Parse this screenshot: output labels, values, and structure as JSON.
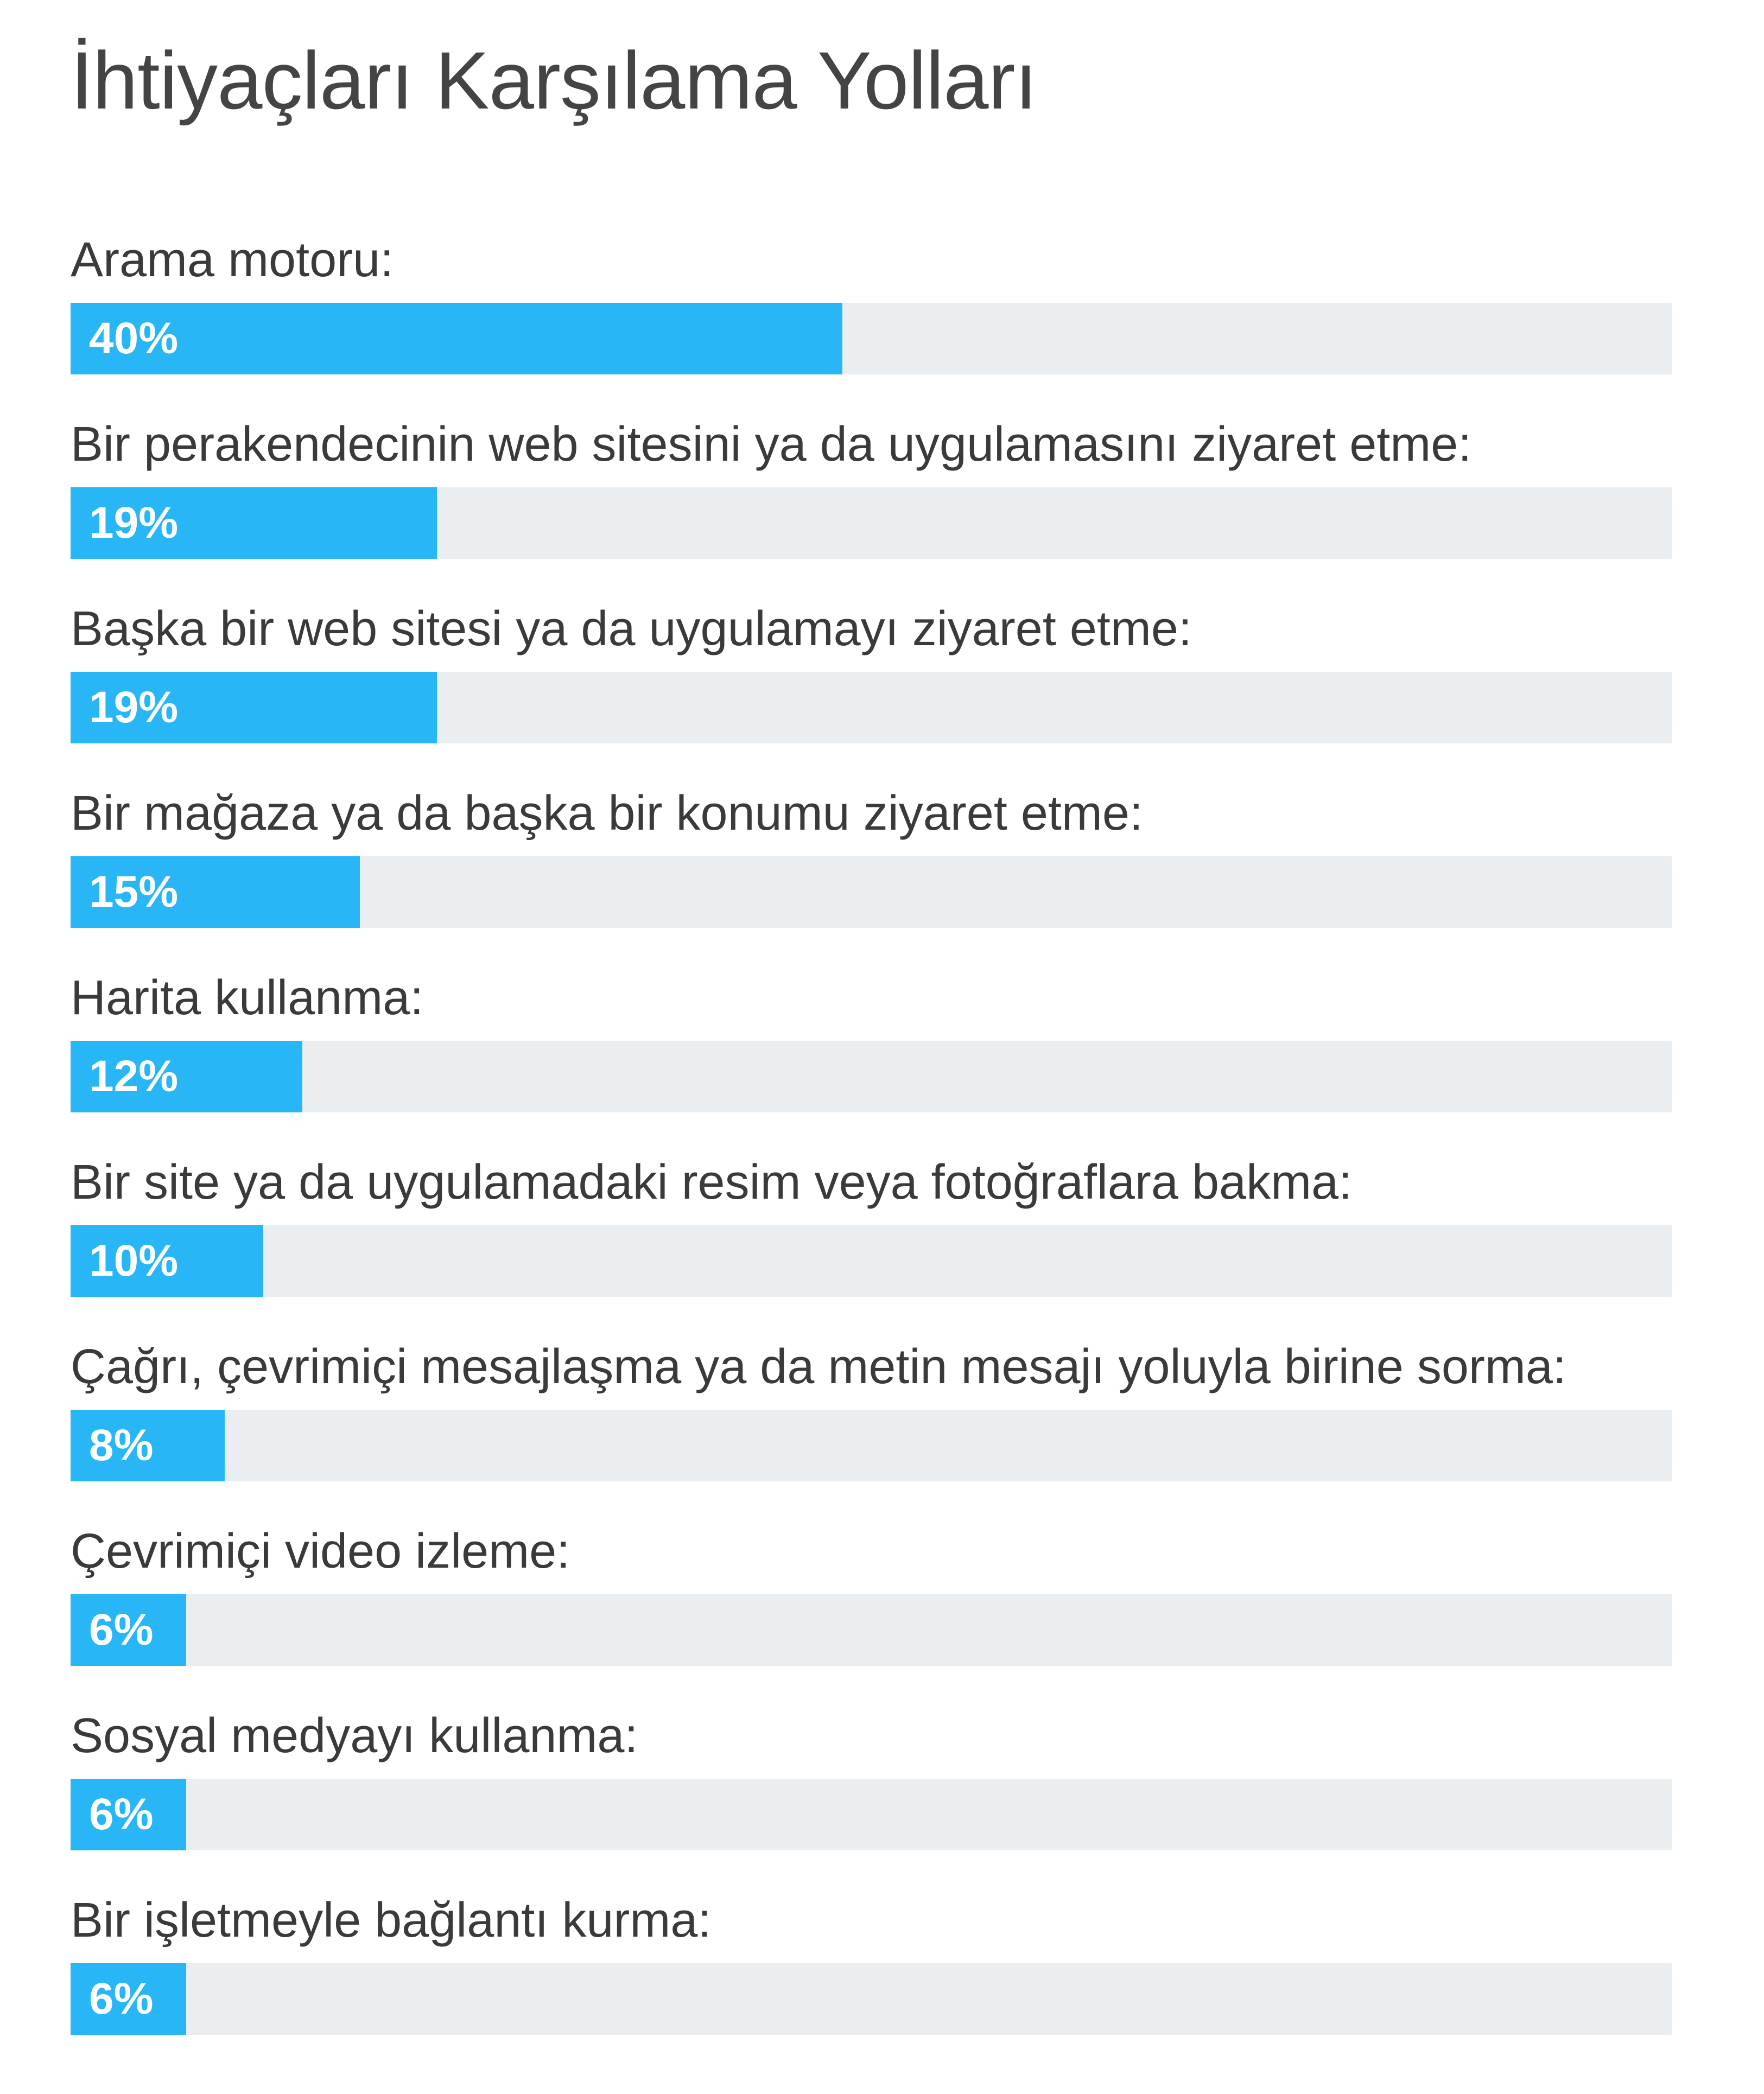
{
  "chart_data": {
    "type": "bar",
    "orientation": "horizontal",
    "title": "İhtiyaçları Karşılama Yolları",
    "categories": [
      "Arama motoru:",
      "Bir perakendecinin web sitesini ya da uygulamasını ziyaret etme:",
      "Başka bir web sitesi ya da uygulamayı ziyaret etme:",
      "Bir mağaza ya da başka bir konumu ziyaret etme:",
      "Harita kullanma:",
      "Bir site ya da uygulamadaki resim veya fotoğraflara bakma:",
      "Çağrı, çevrimiçi mesajlaşma ya da metin mesajı yoluyla birine sorma:",
      "Çevrimiçi video izleme:",
      "Sosyal medyayı kullanma:",
      "Bir işletmeyle bağlantı kurma:"
    ],
    "values": [
      40,
      19,
      19,
      15,
      12,
      10,
      8,
      6,
      6,
      6
    ],
    "value_labels": [
      "40%",
      "19%",
      "19%",
      "15%",
      "12%",
      "10%",
      "8%",
      "6%",
      "6%",
      "6%"
    ],
    "xlim": [
      0,
      83
    ],
    "grid": false,
    "legend": "none",
    "colors": {
      "bar": "#29b6f6",
      "track": "#ebeef1",
      "label_text": "#ffffff",
      "category_text": "#3a3a3a"
    }
  }
}
